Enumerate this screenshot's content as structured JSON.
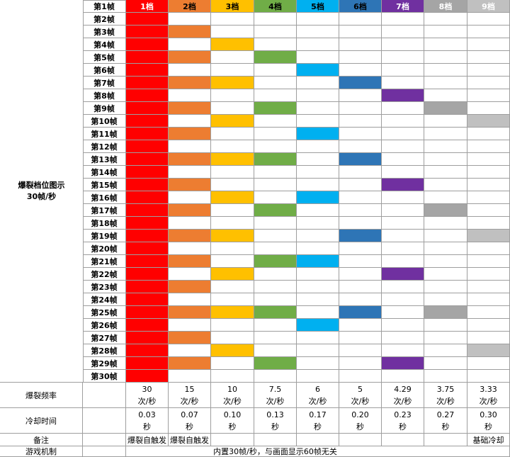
{
  "side_label": [
    "爆裂档位图示",
    "30帧/秒"
  ],
  "gear_headers": [
    "1档",
    "2档",
    "3档",
    "4档",
    "5档",
    "6档",
    "7档",
    "8档",
    "9档"
  ],
  "gear_colors": [
    "#ff0000",
    "#ed7d31",
    "#ffc000",
    "#70ad47",
    "#00b0f0",
    "#2e75b6",
    "#7030a0",
    "#a5a5a5",
    "#c0c0c0"
  ],
  "header_text_colors": [
    "#ffffff",
    "#000000",
    "#000000",
    "#000000",
    "#000000",
    "#000000",
    "#ffffff",
    "#ffffff",
    "#ffffff"
  ],
  "gear_periods": [
    1,
    2,
    3,
    4,
    5,
    6,
    7,
    8,
    9
  ],
  "frame_labels": [
    "第1帧",
    "第2帧",
    "第3帧",
    "第4帧",
    "第5帧",
    "第6帧",
    "第7帧",
    "第8帧",
    "第9帧",
    "第10帧",
    "第11帧",
    "第12帧",
    "第13帧",
    "第14帧",
    "第15帧",
    "第16帧",
    "第17帧",
    "第18帧",
    "第19帧",
    "第20帧",
    "第21帧",
    "第22帧",
    "第23帧",
    "第24帧",
    "第25帧",
    "第26帧",
    "第27帧",
    "第28帧",
    "第29帧",
    "第30帧"
  ],
  "rows": {
    "frequency": {
      "label": "爆裂频率",
      "values": [
        "30",
        "15",
        "10",
        "7.5",
        "6",
        "5",
        "4.29",
        "3.75",
        "3.33"
      ],
      "unit": "次/秒"
    },
    "cooldown": {
      "label": "冷却时间",
      "values": [
        "0.03",
        "0.07",
        "0.10",
        "0.13",
        "0.17",
        "0.20",
        "0.23",
        "0.27",
        "0.30"
      ],
      "unit": "秒"
    },
    "notes": {
      "label": "备注",
      "values": [
        "爆裂自触发",
        "爆裂自触发",
        "",
        "",
        "",
        "",
        "",
        "",
        "基础冷却"
      ]
    },
    "mechanism": {
      "label": "游戏机制",
      "text": "内置30帧/秒，与画面显示60帧无关"
    }
  }
}
